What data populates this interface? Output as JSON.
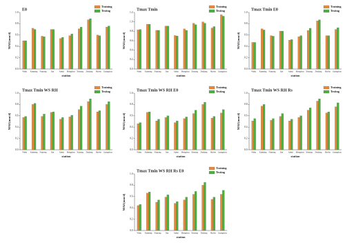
{
  "chart_data": [
    {
      "type": "bar",
      "title": "E0",
      "ylabel": "MAE(mm/d)",
      "xlabel": "station",
      "categories": [
        "Wuhu",
        "Kunming",
        "Nanyang",
        "Jian",
        "Anhui",
        "Mengzhou",
        "Xinyang",
        "Zhejiang",
        "Harbin",
        "Guangzhou"
      ],
      "series": [
        {
          "name": "Training",
          "color": "#e8893a",
          "values": [
            0.5,
            0.72,
            0.58,
            0.7,
            0.54,
            0.59,
            0.71,
            0.87,
            0.6,
            0.74
          ]
        },
        {
          "name": "Testing",
          "color": "#4caf3f",
          "values": [
            0.5,
            0.7,
            0.57,
            0.7,
            0.56,
            0.62,
            0.74,
            0.89,
            0.59,
            0.76
          ]
        }
      ],
      "ylim": [
        0,
        1.0
      ],
      "yticks": [
        {
          "value": 0,
          "label": "0.0"
        },
        0.2,
        0.4,
        0.6,
        0.8,
        {
          "value": 1,
          "label": "1.0"
        }
      ]
    },
    {
      "type": "bar",
      "title": "Tmax Tmin",
      "ylabel": "MAE(mm/d)",
      "xlabel": "station",
      "categories": [
        "Wuhu",
        "Kunming",
        "Nanyang",
        "Jian",
        "Anhui",
        "Mengzhou",
        "Xinyang",
        "Zhejiang",
        "Harbin",
        "Guangzhou"
      ],
      "series": [
        {
          "name": "Training",
          "color": "#e8893a",
          "values": [
            0.83,
            0.95,
            0.82,
            0.91,
            0.71,
            0.85,
            0.97,
            1.0,
            0.87,
            1.15
          ]
        },
        {
          "name": "Testing",
          "color": "#4caf3f",
          "values": [
            0.84,
            0.95,
            0.82,
            0.91,
            0.7,
            0.82,
            0.94,
            0.97,
            0.9,
            1.12
          ]
        }
      ],
      "ylim": [
        0,
        1.2
      ],
      "yticks": [
        {
          "value": 0,
          "label": "0.0"
        },
        0.2,
        0.4,
        0.6,
        0.8,
        {
          "value": 1,
          "label": "1.0"
        },
        1.2
      ]
    },
    {
      "type": "bar",
      "title": "Tmax Tmin E0",
      "ylabel": "MAE(mm/d)",
      "xlabel": "station",
      "categories": [
        "Wuhu",
        "Kunming",
        "Nanyang",
        "Jian",
        "Anhui",
        "Mengzhou",
        "Xinyang",
        "Zhejiang",
        "Harbin",
        "Guangzhou"
      ],
      "series": [
        {
          "name": "Training",
          "color": "#e8893a",
          "values": [
            0.47,
            0.71,
            0.59,
            0.67,
            0.51,
            0.57,
            0.68,
            0.85,
            0.59,
            0.7
          ]
        },
        {
          "name": "Testing",
          "color": "#4caf3f",
          "values": [
            0.47,
            0.69,
            0.58,
            0.67,
            0.52,
            0.59,
            0.72,
            0.87,
            0.59,
            0.73
          ]
        }
      ],
      "ylim": [
        0,
        1.0
      ],
      "yticks": [
        {
          "value": 0,
          "label": "0.0"
        },
        0.2,
        0.4,
        0.6,
        0.8,
        {
          "value": 1,
          "label": "1.0"
        }
      ]
    },
    {
      "type": "bar",
      "title": "Tmax Tmin WS RH",
      "ylabel": "MAE(mm/d)",
      "xlabel": "station",
      "categories": [
        "Wuhu",
        "Kunming",
        "Nanyang",
        "Jian",
        "Anhui",
        "Mengzhou",
        "Xinyang",
        "Zhejiang",
        "Harbin",
        "Guangzhou"
      ],
      "series": [
        {
          "name": "Training",
          "color": "#e8893a",
          "values": [
            0.57,
            0.8,
            0.59,
            0.66,
            0.54,
            0.58,
            0.71,
            0.85,
            0.67,
            0.8
          ]
        },
        {
          "name": "Testing",
          "color": "#4caf3f",
          "values": [
            0.59,
            0.82,
            0.63,
            0.67,
            0.57,
            0.61,
            0.77,
            0.9,
            0.69,
            0.85
          ]
        }
      ],
      "ylim": [
        0,
        1.0
      ],
      "yticks": [
        {
          "value": 0,
          "label": "0.0"
        },
        0.2,
        0.4,
        0.6,
        0.8,
        {
          "value": 1,
          "label": "1.0"
        }
      ]
    },
    {
      "type": "bar",
      "title": "Tmax Tmin WS RH E0",
      "ylabel": "MAE(mm/d)",
      "xlabel": "station",
      "categories": [
        "Wuhu",
        "Kunming",
        "Nanyang",
        "Jian",
        "Anhui",
        "Mengzhou",
        "Xinyang",
        "Zhejiang",
        "Harbin",
        "Guangzhou"
      ],
      "series": [
        {
          "name": "Training",
          "color": "#e8893a",
          "values": [
            0.46,
            0.66,
            0.51,
            0.57,
            0.48,
            0.55,
            0.64,
            0.8,
            0.56,
            0.65
          ]
        },
        {
          "name": "Testing",
          "color": "#4caf3f",
          "values": [
            0.48,
            0.67,
            0.54,
            0.6,
            0.51,
            0.58,
            0.7,
            0.84,
            0.59,
            0.71
          ]
        }
      ],
      "ylim": [
        0,
        1.0
      ],
      "yticks": [
        {
          "value": 0,
          "label": "0.0"
        },
        0.2,
        0.4,
        0.6,
        0.8,
        {
          "value": 1,
          "label": "1.0"
        }
      ]
    },
    {
      "type": "bar",
      "title": "Tmax Tmin WS RH Rs",
      "ylabel": "MAE(mm/d)",
      "xlabel": "station",
      "categories": [
        "Wuhu",
        "Kunming",
        "Nanyang",
        "Jian",
        "Anhui",
        "Mengzhou",
        "Xinyang",
        "Zhejiang",
        "Harbin",
        "Guangzhou"
      ],
      "series": [
        {
          "name": "Training",
          "color": "#e8893a",
          "values": [
            0.51,
            0.77,
            0.52,
            0.59,
            0.51,
            0.57,
            0.7,
            0.86,
            0.65,
            0.76
          ]
        },
        {
          "name": "Testing",
          "color": "#4caf3f",
          "values": [
            0.55,
            0.8,
            0.55,
            0.64,
            0.54,
            0.6,
            0.74,
            0.9,
            0.67,
            0.83
          ]
        }
      ],
      "ylim": [
        0,
        1.0
      ],
      "yticks": [
        {
          "value": 0,
          "label": "0.0"
        },
        0.2,
        0.4,
        0.6,
        0.8,
        {
          "value": 1,
          "label": "1.0"
        }
      ]
    },
    {
      "type": "bar",
      "title": "Tmax Tmin WS RH Rs E0",
      "ylabel": "MAE(mm/d)",
      "xlabel": "station",
      "categories": [
        "Wuhu",
        "Kunming",
        "Nanyang",
        "Jian",
        "Anhui",
        "Mengzhou",
        "Xinyang",
        "Zhejiang",
        "Harbin",
        "Guangzhou"
      ],
      "series": [
        {
          "name": "Training",
          "color": "#e8893a",
          "values": [
            0.44,
            0.66,
            0.5,
            0.59,
            0.48,
            0.54,
            0.64,
            0.8,
            0.55,
            0.64
          ]
        },
        {
          "name": "Testing",
          "color": "#4caf3f",
          "values": [
            0.46,
            0.68,
            0.54,
            0.63,
            0.51,
            0.59,
            0.69,
            0.85,
            0.59,
            0.71
          ]
        }
      ],
      "ylim": [
        0,
        1.0
      ],
      "yticks": [
        {
          "value": 0,
          "label": "0.0"
        },
        0.2,
        0.4,
        0.6,
        0.8,
        {
          "value": 1,
          "label": "1.0"
        }
      ]
    }
  ]
}
